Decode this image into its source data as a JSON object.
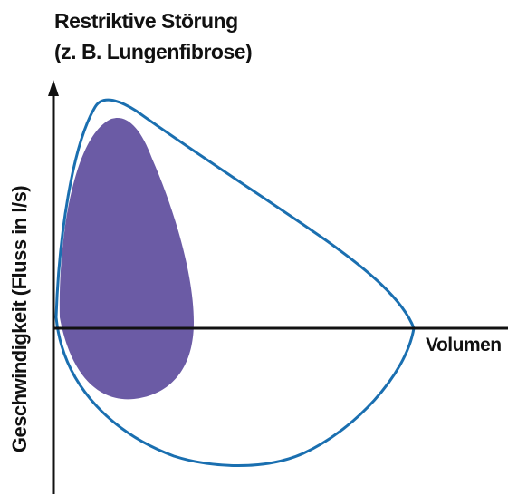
{
  "title": {
    "line1": "Restriktive Störung",
    "line2": "(z. B. Lungenfibrose)"
  },
  "axes": {
    "ylabel": "Geschwindigkeit (Fluss in l/s)",
    "xlabel": "Volumen"
  },
  "colors": {
    "restrictive_fill": "#6b5ba5",
    "normal_outline": "#1a6fb0",
    "axis": "#111111"
  }
}
